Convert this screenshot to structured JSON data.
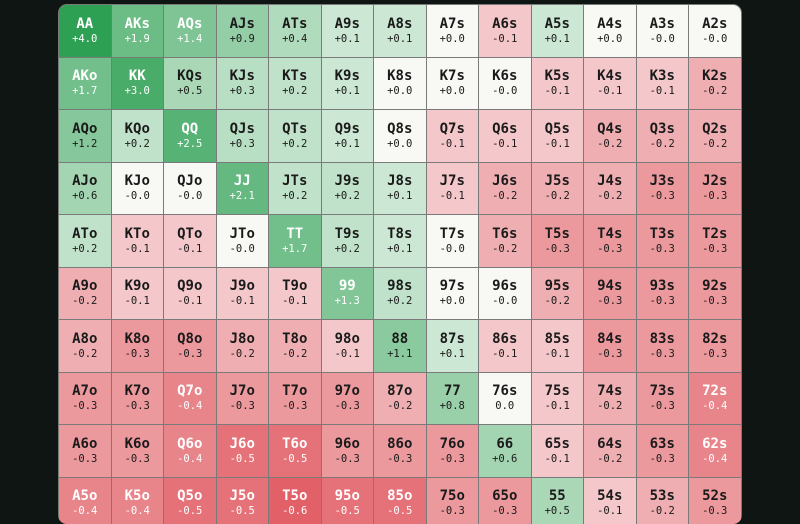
{
  "grid": {
    "rows": [
      [
        [
          "AA",
          "+4.0"
        ],
        [
          "AKs",
          "+1.9"
        ],
        [
          "AQs",
          "+1.4"
        ],
        [
          "AJs",
          "+0.9"
        ],
        [
          "ATs",
          "+0.4"
        ],
        [
          "A9s",
          "+0.1"
        ],
        [
          "A8s",
          "+0.1"
        ],
        [
          "A7s",
          "+0.0"
        ],
        [
          "A6s",
          "-0.1"
        ],
        [
          "A5s",
          "+0.1"
        ],
        [
          "A4s",
          "+0.0"
        ],
        [
          "A3s",
          "-0.0"
        ],
        [
          "A2s",
          "-0.0"
        ]
      ],
      [
        [
          "AKo",
          "+1.7"
        ],
        [
          "KK",
          "+3.0"
        ],
        [
          "KQs",
          "+0.5"
        ],
        [
          "KJs",
          "+0.3"
        ],
        [
          "KTs",
          "+0.2"
        ],
        [
          "K9s",
          "+0.1"
        ],
        [
          "K8s",
          "+0.0"
        ],
        [
          "K7s",
          "+0.0"
        ],
        [
          "K6s",
          "-0.0"
        ],
        [
          "K5s",
          "-0.1"
        ],
        [
          "K4s",
          "-0.1"
        ],
        [
          "K3s",
          "-0.1"
        ],
        [
          "K2s",
          "-0.2"
        ]
      ],
      [
        [
          "AQo",
          "+1.2"
        ],
        [
          "KQo",
          "+0.2"
        ],
        [
          "QQ",
          "+2.5"
        ],
        [
          "QJs",
          "+0.3"
        ],
        [
          "QTs",
          "+0.2"
        ],
        [
          "Q9s",
          "+0.1"
        ],
        [
          "Q8s",
          "+0.0"
        ],
        [
          "Q7s",
          "-0.1"
        ],
        [
          "Q6s",
          "-0.1"
        ],
        [
          "Q5s",
          "-0.1"
        ],
        [
          "Q4s",
          "-0.2"
        ],
        [
          "Q3s",
          "-0.2"
        ],
        [
          "Q2s",
          "-0.2"
        ]
      ],
      [
        [
          "AJo",
          "+0.6"
        ],
        [
          "KJo",
          "-0.0"
        ],
        [
          "QJo",
          "-0.0"
        ],
        [
          "JJ",
          "+2.1"
        ],
        [
          "JTs",
          "+0.2"
        ],
        [
          "J9s",
          "+0.2"
        ],
        [
          "J8s",
          "+0.1"
        ],
        [
          "J7s",
          "-0.1"
        ],
        [
          "J6s",
          "-0.2"
        ],
        [
          "J5s",
          "-0.2"
        ],
        [
          "J4s",
          "-0.2"
        ],
        [
          "J3s",
          "-0.3"
        ],
        [
          "J2s",
          "-0.3"
        ]
      ],
      [
        [
          "ATo",
          "+0.2"
        ],
        [
          "KTo",
          "-0.1"
        ],
        [
          "QTo",
          "-0.1"
        ],
        [
          "JTo",
          "-0.0"
        ],
        [
          "TT",
          "+1.7"
        ],
        [
          "T9s",
          "+0.2"
        ],
        [
          "T8s",
          "+0.1"
        ],
        [
          "T7s",
          "-0.0"
        ],
        [
          "T6s",
          "-0.2"
        ],
        [
          "T5s",
          "-0.3"
        ],
        [
          "T4s",
          "-0.3"
        ],
        [
          "T3s",
          "-0.3"
        ],
        [
          "T2s",
          "-0.3"
        ]
      ],
      [
        [
          "A9o",
          "-0.2"
        ],
        [
          "K9o",
          "-0.1"
        ],
        [
          "Q9o",
          "-0.1"
        ],
        [
          "J9o",
          "-0.1"
        ],
        [
          "T9o",
          "-0.1"
        ],
        [
          "99",
          "+1.3"
        ],
        [
          "98s",
          "+0.2"
        ],
        [
          "97s",
          "+0.0"
        ],
        [
          "96s",
          "-0.0"
        ],
        [
          "95s",
          "-0.2"
        ],
        [
          "94s",
          "-0.3"
        ],
        [
          "93s",
          "-0.3"
        ],
        [
          "92s",
          "-0.3"
        ]
      ],
      [
        [
          "A8o",
          "-0.2"
        ],
        [
          "K8o",
          "-0.3"
        ],
        [
          "Q8o",
          "-0.3"
        ],
        [
          "J8o",
          "-0.2"
        ],
        [
          "T8o",
          "-0.2"
        ],
        [
          "98o",
          "-0.1"
        ],
        [
          "88",
          "+1.1"
        ],
        [
          "87s",
          "+0.1"
        ],
        [
          "86s",
          "-0.1"
        ],
        [
          "85s",
          "-0.1"
        ],
        [
          "84s",
          "-0.3"
        ],
        [
          "83s",
          "-0.3"
        ],
        [
          "82s",
          "-0.3"
        ]
      ],
      [
        [
          "A7o",
          "-0.3"
        ],
        [
          "K7o",
          "-0.3"
        ],
        [
          "Q7o",
          "-0.4"
        ],
        [
          "J7o",
          "-0.3"
        ],
        [
          "T7o",
          "-0.3"
        ],
        [
          "97o",
          "-0.3"
        ],
        [
          "87o",
          "-0.2"
        ],
        [
          "77",
          "+0.8"
        ],
        [
          "76s",
          "0.0"
        ],
        [
          "75s",
          "-0.1"
        ],
        [
          "74s",
          "-0.2"
        ],
        [
          "73s",
          "-0.3"
        ],
        [
          "72s",
          "-0.4"
        ]
      ],
      [
        [
          "A6o",
          "-0.3"
        ],
        [
          "K6o",
          "-0.3"
        ],
        [
          "Q6o",
          "-0.4"
        ],
        [
          "J6o",
          "-0.5"
        ],
        [
          "T6o",
          "-0.5"
        ],
        [
          "96o",
          "-0.3"
        ],
        [
          "86o",
          "-0.3"
        ],
        [
          "76o",
          "-0.3"
        ],
        [
          "66",
          "+0.6"
        ],
        [
          "65s",
          "-0.1"
        ],
        [
          "64s",
          "-0.2"
        ],
        [
          "63s",
          "-0.3"
        ],
        [
          "62s",
          "-0.4"
        ]
      ],
      [
        [
          "A5o",
          "-0.4"
        ],
        [
          "K5o",
          "-0.4"
        ],
        [
          "Q5o",
          "-0.5"
        ],
        [
          "J5o",
          "-0.5"
        ],
        [
          "T5o",
          "-0.6"
        ],
        [
          "95o",
          "-0.5"
        ],
        [
          "85o",
          "-0.5"
        ],
        [
          "75o",
          "-0.3"
        ],
        [
          "65o",
          "-0.3"
        ],
        [
          "55",
          "+0.5"
        ],
        [
          "54s",
          "-0.1"
        ],
        [
          "53s",
          "-0.2"
        ],
        [
          "52s",
          "-0.3"
        ]
      ]
    ]
  }
}
